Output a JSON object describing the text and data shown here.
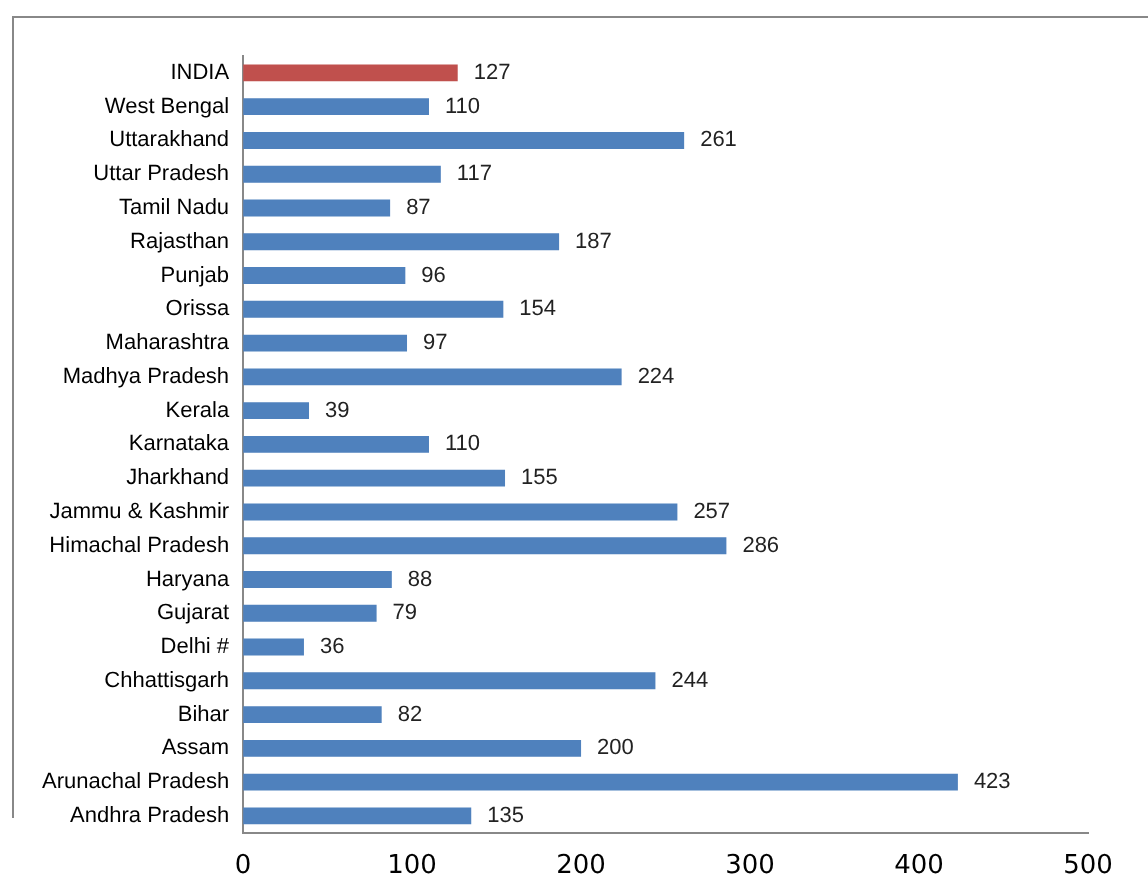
{
  "chart_data": {
    "type": "bar",
    "orientation": "horizontal",
    "categories": [
      "INDIA",
      "West Bengal",
      "Uttarakhand",
      "Uttar Pradesh",
      "Tamil Nadu",
      "Rajasthan",
      "Punjab",
      "Orissa",
      "Maharashtra",
      "Madhya Pradesh",
      "Kerala",
      "Karnataka",
      "Jharkhand",
      "Jammu & Kashmir",
      "Himachal Pradesh",
      "Haryana",
      "Gujarat",
      "Delhi #",
      "Chhattisgarh",
      "Bihar",
      "Assam",
      "Arunachal Pradesh",
      "Andhra Pradesh"
    ],
    "values": [
      127,
      110,
      261,
      117,
      87,
      187,
      96,
      154,
      97,
      224,
      39,
      110,
      155,
      257,
      286,
      88,
      79,
      36,
      244,
      82,
      200,
      423,
      135
    ],
    "colors": [
      "#c0504d",
      "#4f81bd",
      "#4f81bd",
      "#4f81bd",
      "#4f81bd",
      "#4f81bd",
      "#4f81bd",
      "#4f81bd",
      "#4f81bd",
      "#4f81bd",
      "#4f81bd",
      "#4f81bd",
      "#4f81bd",
      "#4f81bd",
      "#4f81bd",
      "#4f81bd",
      "#4f81bd",
      "#4f81bd",
      "#4f81bd",
      "#4f81bd",
      "#4f81bd",
      "#4f81bd",
      "#4f81bd"
    ],
    "xlim": [
      0,
      500
    ],
    "xticks": [
      0,
      100,
      200,
      300,
      400,
      500
    ],
    "data_labels": true,
    "grid": false,
    "legend": false
  }
}
